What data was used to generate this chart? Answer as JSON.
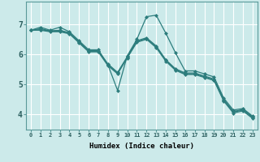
{
  "xlabel": "Humidex (Indice chaleur)",
  "background_color": "#cceaea",
  "grid_color": "#ffffff",
  "line_color": "#2d7d7d",
  "xlim": [
    -0.5,
    23.5
  ],
  "ylim": [
    3.5,
    7.75
  ],
  "xticks": [
    0,
    1,
    2,
    3,
    4,
    5,
    6,
    7,
    8,
    9,
    10,
    11,
    12,
    13,
    14,
    15,
    16,
    17,
    18,
    19,
    20,
    21,
    22,
    23
  ],
  "yticks": [
    4,
    5,
    6,
    7
  ],
  "series": [
    [
      6.8,
      6.9,
      6.8,
      6.9,
      6.75,
      6.45,
      6.15,
      6.15,
      5.65,
      4.8,
      5.95,
      6.5,
      7.25,
      7.3,
      6.7,
      6.05,
      5.45,
      5.45,
      5.35,
      5.25,
      4.55,
      4.15,
      4.2,
      3.95
    ],
    [
      6.8,
      6.85,
      6.78,
      6.8,
      6.72,
      6.42,
      6.12,
      6.12,
      5.68,
      5.4,
      5.92,
      6.45,
      6.55,
      6.28,
      5.82,
      5.52,
      5.38,
      5.38,
      5.28,
      5.18,
      4.5,
      4.1,
      4.17,
      3.92
    ],
    [
      6.8,
      6.82,
      6.77,
      6.77,
      6.7,
      6.4,
      6.1,
      6.1,
      5.65,
      5.38,
      5.9,
      6.42,
      6.52,
      6.25,
      5.8,
      5.5,
      5.35,
      5.35,
      5.25,
      5.15,
      4.48,
      4.08,
      4.15,
      3.9
    ],
    [
      6.8,
      6.8,
      6.75,
      6.75,
      6.68,
      6.38,
      6.08,
      6.08,
      5.62,
      5.35,
      5.88,
      6.4,
      6.5,
      6.22,
      5.77,
      5.47,
      5.33,
      5.33,
      5.23,
      5.13,
      4.45,
      4.05,
      4.12,
      3.87
    ]
  ]
}
